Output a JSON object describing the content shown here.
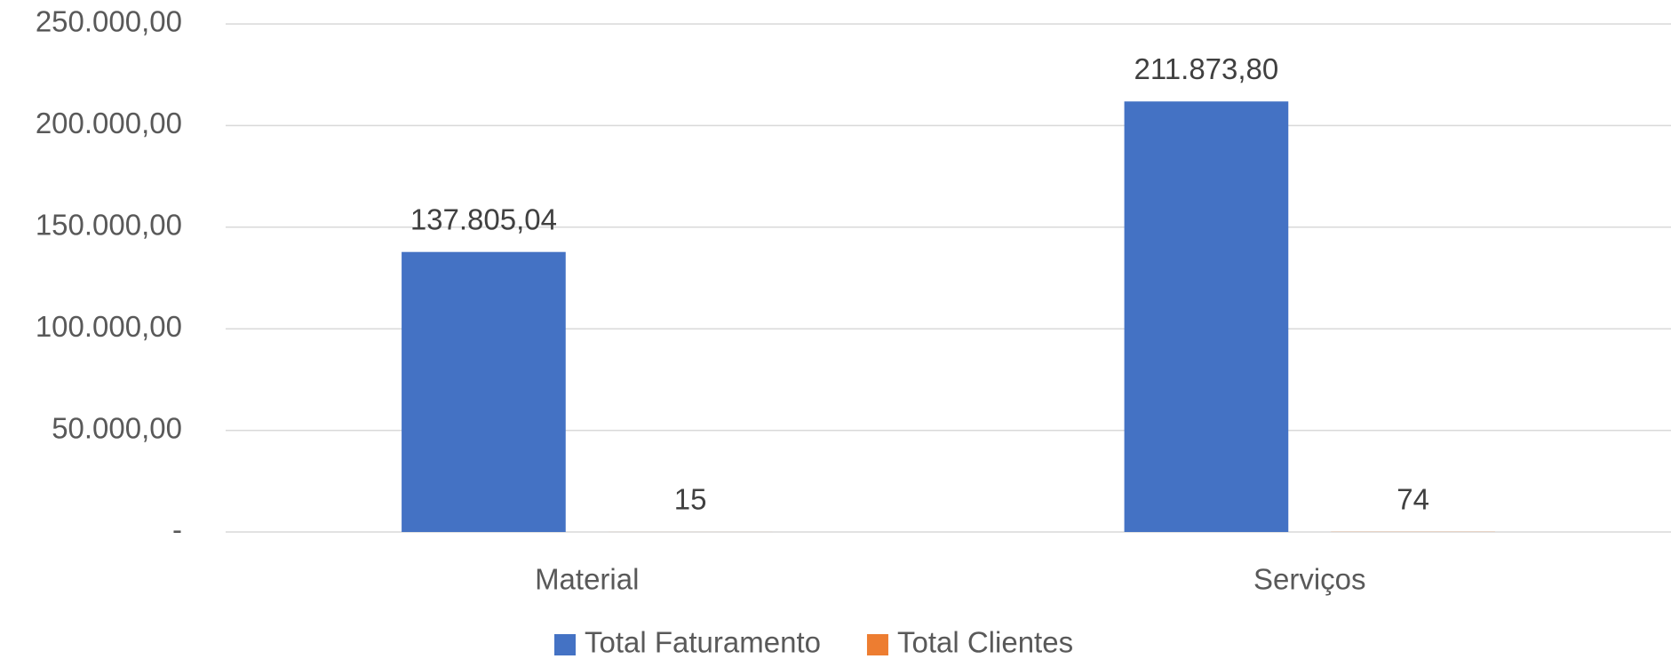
{
  "chart_data": {
    "type": "bar",
    "categories": [
      "Material",
      "Serviços"
    ],
    "series": [
      {
        "name": "Total Faturamento",
        "color": "#4472c4",
        "values": [
          137805.04,
          211873.8
        ],
        "value_labels": [
          "137.805,04",
          "211.873,80"
        ]
      },
      {
        "name": "Total Clientes",
        "color": "#ed7d31",
        "values": [
          15,
          74
        ],
        "value_labels": [
          "15",
          "74"
        ]
      }
    ],
    "ylim": [
      0,
      250000
    ],
    "yticks": [
      {
        "value": 0,
        "label": "-"
      },
      {
        "value": 50000,
        "label": "50.000,00"
      },
      {
        "value": 100000,
        "label": "100.000,00"
      },
      {
        "value": 150000,
        "label": "150.000,00"
      },
      {
        "value": 200000,
        "label": "200.000,00"
      },
      {
        "value": 250000,
        "label": "250.000,00"
      }
    ],
    "grid": true,
    "legend": "bottom"
  }
}
